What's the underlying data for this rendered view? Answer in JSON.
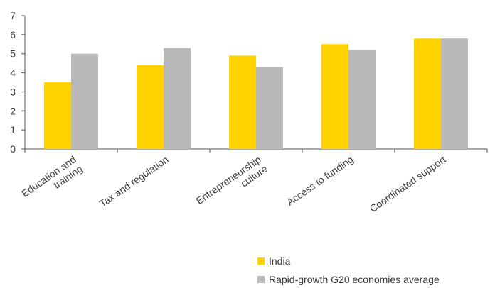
{
  "chart_data": {
    "type": "bar",
    "categories": [
      [
        "Education and",
        "training"
      ],
      [
        "Tax and regulation"
      ],
      [
        "Entrepreneurship",
        "culture"
      ],
      [
        "Access to funding"
      ],
      [
        "Coordinated support"
      ]
    ],
    "series": [
      {
        "name": "India",
        "color": "#FFD200",
        "values": [
          3.5,
          4.4,
          4.9,
          5.5,
          5.8
        ]
      },
      {
        "name": "Rapid-growth G20 economies average",
        "color": "#B9B9B9",
        "values": [
          5.0,
          5.3,
          4.3,
          5.2,
          5.8
        ]
      }
    ],
    "yticks": [
      "0",
      "1",
      "2",
      "3",
      "4",
      "5",
      "6",
      "7"
    ],
    "ylim": [
      0,
      7
    ],
    "grid": false,
    "legend_position": "bottom-right",
    "title": "",
    "xlabel": "",
    "ylabel": ""
  }
}
